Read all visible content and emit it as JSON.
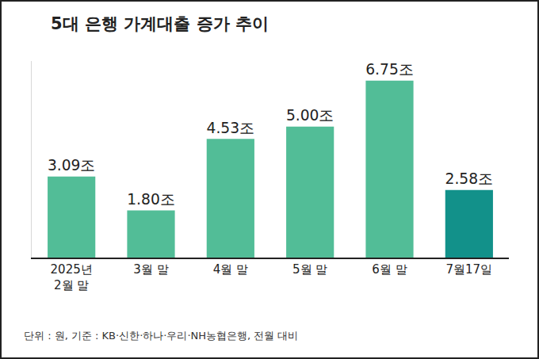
{
  "chart_data": {
    "type": "bar",
    "title": "5대 은행 가계대출 증가 추이",
    "categories": [
      "2025년\n2월 말",
      "3월 말",
      "4월 말",
      "5월 말",
      "6월 말",
      "7월17일"
    ],
    "values": [
      3.09,
      1.8,
      4.53,
      5.0,
      6.75,
      2.58
    ],
    "value_labels": [
      "3.09조",
      "1.80조",
      "4.53조",
      "5.00조",
      "6.75조",
      "2.58조"
    ],
    "colors": [
      "#52bd97",
      "#52bd97",
      "#52bd97",
      "#52bd97",
      "#52bd97",
      "#12918a"
    ],
    "data_labels": true,
    "ylim": [
      0,
      7.5
    ],
    "tick_labels": "x",
    "grid": false,
    "annotations": [
      "단위 : 원, 기준 : KB·신한·하나·우리·NH농협은행, 전월 대비"
    ]
  }
}
